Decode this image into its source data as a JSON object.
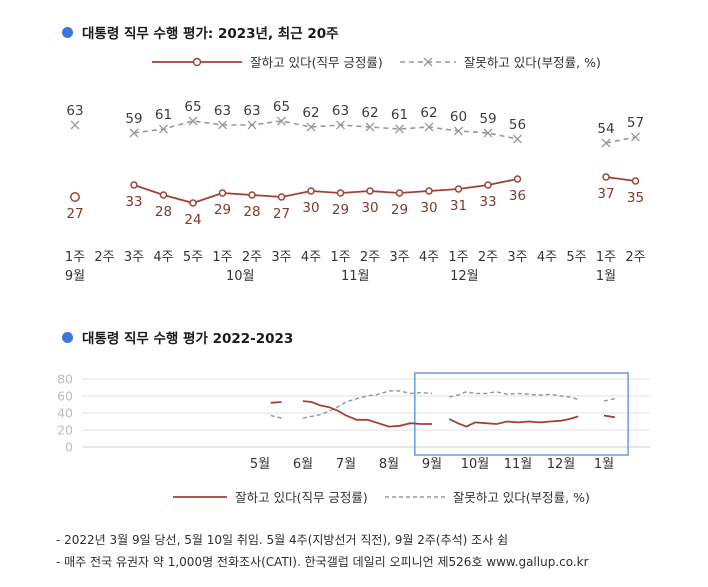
{
  "colors": {
    "accent": "#3b76de",
    "positive": "#a04238",
    "negative": "#999999",
    "positive_label": "#7e3a2e",
    "negative_label": "#3d3d3d",
    "axis_label": "#333333",
    "grid": "#e2e2e2",
    "grid_zero": "#cccccc",
    "grid_label": "#bdbdbd",
    "highlight": "#6fa3e0"
  },
  "top_chart": {
    "title": "대통령 직무 수행 평가: 2023년, 최근 20주",
    "legend": {
      "positive": "잘하고 있다(직무 긍정률)",
      "negative": "잘못하고 있다(부정률, %)"
    }
  },
  "bottom_chart": {
    "title": "대통령 직무 수행 평가 2022-2023",
    "legend": {
      "positive": "잘하고 있다(직무 긍정률)",
      "negative": "잘못하고 있다(부정률, %)"
    }
  },
  "footnotes": [
    "- 2022년 3월 9일 당선, 5월 10일 취임. 5월 4주(지방선거 직전), 9월 2주(추석) 조사 쉼",
    "- 매주 전국 유권자 약 1,000명 전화조사(CATI). 한국갤럽 데일리 오피니언 제526호 www.gallup.co.kr"
  ],
  "chart_data": [
    {
      "type": "line",
      "title": "대통령 직무 수행 평가: 2023년, 최근 20주",
      "x_week_labels": [
        "1주",
        "2주",
        "3주",
        "4주",
        "5주",
        "1주",
        "2주",
        "3주",
        "4주",
        "1주",
        "2주",
        "3주",
        "4주",
        "1주",
        "2주",
        "3주",
        "4주",
        "5주",
        "1주",
        "2주"
      ],
      "month_labels": [
        {
          "label": "9월",
          "slot": 0
        },
        {
          "label": "10월",
          "slot": 5.6
        },
        {
          "label": "11월",
          "slot": 9.5
        },
        {
          "label": "12월",
          "slot": 13.2
        },
        {
          "label": "1월",
          "slot": 18
        }
      ],
      "ylim": [
        20,
        70
      ],
      "value_labels": true,
      "series": [
        {
          "name": "잘하고 있다(직무 긍정률)",
          "style": "solid",
          "marker": "circle",
          "values": [
            27,
            null,
            33,
            28,
            24,
            29,
            28,
            27,
            30,
            29,
            30,
            29,
            30,
            31,
            33,
            36,
            null,
            null,
            37,
            35
          ]
        },
        {
          "name": "잘못하고 있다(부정률, %)",
          "style": "dashed",
          "marker": "x",
          "values": [
            63,
            null,
            59,
            61,
            65,
            63,
            63,
            65,
            62,
            63,
            62,
            61,
            62,
            60,
            59,
            56,
            null,
            null,
            54,
            57
          ]
        }
      ]
    },
    {
      "type": "line",
      "title": "대통령 직무 수행 평가 2022-2023",
      "x_month_labels": [
        "5월",
        "6월",
        "7월",
        "8월",
        "9월",
        "10월",
        "11월",
        "12월",
        "1월"
      ],
      "x": [
        0.25,
        0.5,
        0.75,
        1,
        1.2,
        1.4,
        1.6,
        1.8,
        2,
        2.25,
        2.5,
        2.75,
        3,
        3.25,
        3.5,
        3.75,
        4,
        4.2,
        4.4,
        4.6,
        4.8,
        5,
        5.25,
        5.5,
        5.75,
        6,
        6.25,
        6.5,
        6.75,
        7,
        7.2,
        7.4,
        7.6,
        7.8,
        8,
        8.25
      ],
      "yticks": [
        0,
        20,
        40,
        60,
        80
      ],
      "ylim": [
        0,
        80
      ],
      "series": [
        {
          "name": "잘하고 있다(직무 긍정률)",
          "style": "solid",
          "values": [
            52,
            53,
            null,
            54,
            53,
            49,
            47,
            43,
            37,
            32,
            32,
            28,
            24,
            25,
            28,
            27,
            27,
            null,
            33,
            28,
            24,
            29,
            28,
            27,
            30,
            29,
            30,
            29,
            30,
            31,
            33,
            36,
            null,
            null,
            37,
            35
          ]
        },
        {
          "name": "잘못하고 있다(부정률, %)",
          "style": "dashed",
          "values": [
            37,
            34,
            null,
            34,
            36,
            38,
            42,
            47,
            53,
            57,
            60,
            62,
            66,
            66,
            63,
            64,
            63,
            null,
            59,
            61,
            65,
            63,
            63,
            65,
            62,
            63,
            62,
            61,
            62,
            60,
            59,
            56,
            null,
            null,
            54,
            57
          ]
        }
      ],
      "highlight_box": {
        "x0": 3.6,
        "x1": 8.56
      }
    }
  ]
}
